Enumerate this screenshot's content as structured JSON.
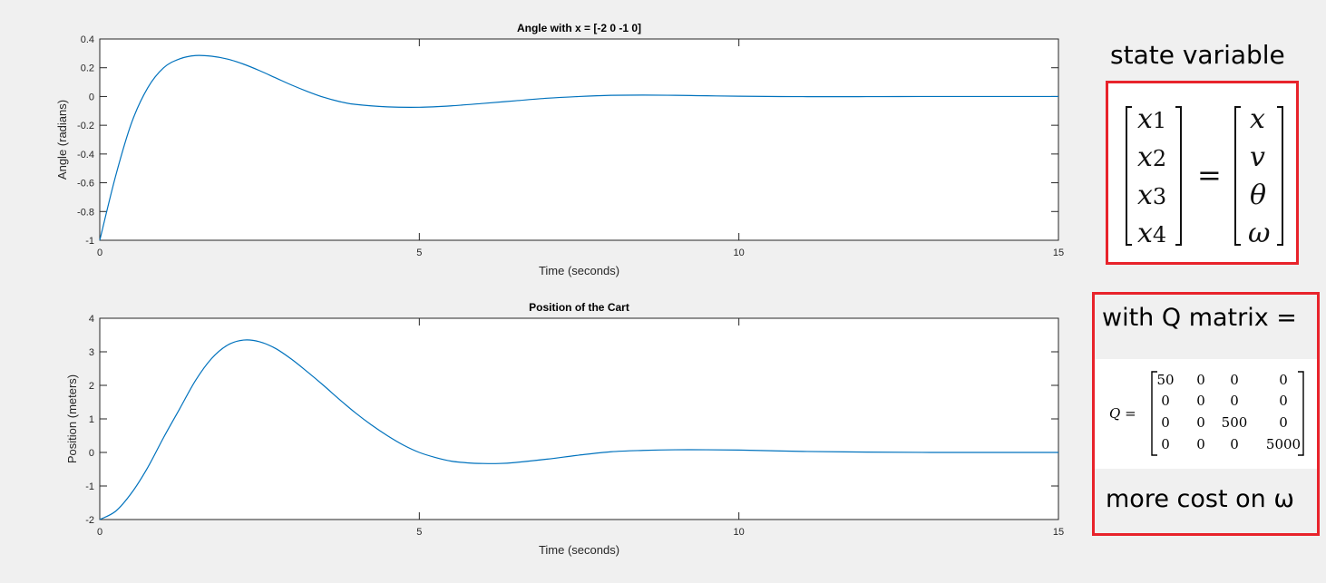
{
  "chart_data": [
    {
      "type": "line",
      "title": "Angle with x = [-2 0 -1 0]",
      "xlabel": "Time (seconds)",
      "ylabel": "Angle (radians)",
      "xlim": [
        0,
        15
      ],
      "ylim": [
        -1,
        0.4
      ],
      "xticks": [
        "0",
        "5",
        "10",
        "15"
      ],
      "yticks": [
        "0.4",
        "0.2",
        "0",
        "-0.2",
        "-0.4",
        "-0.6",
        "-0.8",
        "-1"
      ],
      "ytick_values": [
        0.4,
        0.2,
        0,
        -0.2,
        -0.4,
        -0.6,
        -0.8,
        -1
      ],
      "xtick_values": [
        0,
        5,
        10,
        15
      ],
      "color": "#0072bd",
      "grid": false,
      "x": [
        0,
        0.25,
        0.5,
        0.75,
        1.0,
        1.25,
        1.5,
        1.75,
        2.0,
        2.25,
        2.5,
        2.75,
        3.0,
        3.25,
        3.5,
        3.75,
        4.0,
        4.5,
        5.0,
        5.5,
        6.0,
        6.5,
        7.0,
        7.5,
        8.0,
        8.5,
        9.0,
        9.5,
        10.0,
        11.0,
        12.0,
        13.0,
        14.0,
        15.0
      ],
      "y": [
        -1.0,
        -0.55,
        -0.18,
        0.06,
        0.2,
        0.262,
        0.285,
        0.28,
        0.26,
        0.225,
        0.18,
        0.13,
        0.08,
        0.035,
        -0.005,
        -0.035,
        -0.055,
        -0.072,
        -0.075,
        -0.065,
        -0.048,
        -0.03,
        -0.012,
        0.0,
        0.008,
        0.01,
        0.008,
        0.005,
        0.002,
        -0.001,
        -0.001,
        0.0,
        0.0,
        0.0
      ]
    },
    {
      "type": "line",
      "title": "Position of the Cart",
      "xlabel": "Time (seconds)",
      "ylabel": "Position (meters)",
      "xlim": [
        0,
        15
      ],
      "ylim": [
        -2,
        4
      ],
      "xticks": [
        "0",
        "5",
        "10",
        "15"
      ],
      "yticks": [
        "4",
        "3",
        "2",
        "1",
        "0",
        "-1",
        "-2"
      ],
      "ytick_values": [
        4,
        3,
        2,
        1,
        0,
        -1,
        -2
      ],
      "xtick_values": [
        0,
        5,
        10,
        15
      ],
      "color": "#0072bd",
      "grid": false,
      "x": [
        0,
        0.25,
        0.5,
        0.75,
        1.0,
        1.25,
        1.5,
        1.75,
        2.0,
        2.25,
        2.5,
        2.75,
        3.0,
        3.25,
        3.5,
        3.75,
        4.0,
        4.25,
        4.5,
        4.75,
        5.0,
        5.25,
        5.5,
        5.75,
        6.0,
        6.25,
        6.5,
        7.0,
        7.5,
        8.0,
        8.5,
        9.0,
        9.5,
        10.0,
        10.5,
        11.0,
        12.0,
        13.0,
        14.0,
        15.0
      ],
      "y": [
        -2.0,
        -1.75,
        -1.2,
        -0.45,
        0.45,
        1.3,
        2.15,
        2.8,
        3.2,
        3.35,
        3.3,
        3.1,
        2.78,
        2.4,
        2.0,
        1.58,
        1.18,
        0.82,
        0.5,
        0.22,
        0.0,
        -0.15,
        -0.26,
        -0.31,
        -0.33,
        -0.33,
        -0.3,
        -0.2,
        -0.08,
        0.02,
        0.06,
        0.08,
        0.08,
        0.07,
        0.05,
        0.03,
        0.01,
        0.0,
        0.0,
        0.0
      ]
    }
  ],
  "annotations": {
    "state_heading": "state variable",
    "state_lhs": [
      {
        "base": "x",
        "sub": "1"
      },
      {
        "base": "x",
        "sub": "2"
      },
      {
        "base": "x",
        "sub": "3"
      },
      {
        "base": "x",
        "sub": "4"
      }
    ],
    "equals": "=",
    "state_rhs": [
      "x",
      "v",
      "θ",
      "ω"
    ],
    "q_heading": "with Q matrix =",
    "q_label": "Q =",
    "q_matrix": [
      [
        "50",
        "0",
        "0",
        "0"
      ],
      [
        "0",
        "0",
        "0",
        "0"
      ],
      [
        "0",
        "0",
        "500",
        "0"
      ],
      [
        "0",
        "0",
        "0",
        "5000"
      ]
    ],
    "more_cost": "more cost on ω",
    "box_color": "#e8232b"
  }
}
